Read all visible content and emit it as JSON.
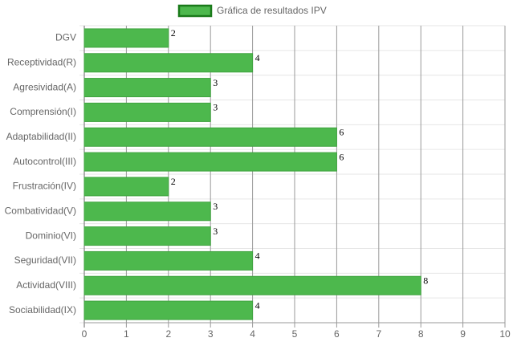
{
  "chart_data": {
    "type": "bar",
    "orientation": "horizontal",
    "categories": [
      "DGV",
      "Receptividad(R)",
      "Agresividad(A)",
      "Comprensión(I)",
      "Adaptabilidad(II)",
      "Autocontrol(III)",
      "Frustración(IV)",
      "Combatividad(V)",
      "Dominio(VI)",
      "Seguridad(VII)",
      "Actividad(VIII)",
      "Sociabilidad(IX)"
    ],
    "series": [
      {
        "name": "Gráfica de resultados IPV",
        "color": "#4db84d",
        "values": [
          2,
          4,
          3,
          3,
          6,
          6,
          2,
          3,
          3,
          4,
          8,
          4
        ]
      }
    ],
    "xlim": [
      0,
      10
    ],
    "xticks": [
      0,
      1,
      2,
      3,
      4,
      5,
      6,
      7,
      8,
      9,
      10
    ],
    "grid": true,
    "legend": "top"
  }
}
